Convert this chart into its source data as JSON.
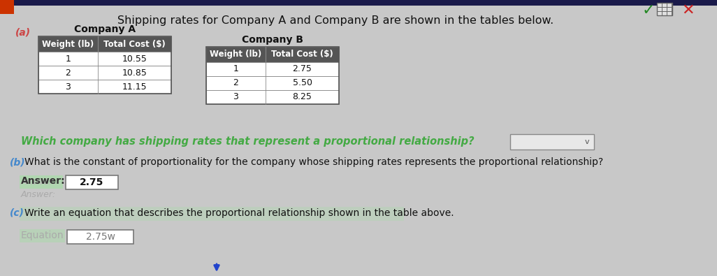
{
  "title": "Shipping rates for Company A and Company B are shown in the tables below.",
  "background_color": "#c8c8c8",
  "company_a_label": "Company A",
  "company_b_label": "Company B",
  "company_a_headers": [
    "Weight (lb)",
    "Total Cost ($)"
  ],
  "company_a_rows": [
    [
      "1",
      "10.55"
    ],
    [
      "2",
      "10.85"
    ],
    [
      "3",
      "11.15"
    ]
  ],
  "company_b_headers": [
    "Weight (lb)",
    "Total Cost ($)"
  ],
  "company_b_rows": [
    [
      "1",
      "2.75"
    ],
    [
      "2",
      "5.50"
    ],
    [
      "3",
      "8.25"
    ]
  ],
  "question_a": "Which company has shipping rates that represent a proportional relationship?",
  "question_b": "What is the constant of proportionality for the company whose shipping rates represents the proportional relationship?",
  "answer_label": "Answer:",
  "answer_value": "2.75",
  "question_c": "Write an equation that describes the proportional relationship shown in the table above.",
  "equation_label": "Equation",
  "equation_value": "2.75w",
  "part_a_label": "(a)",
  "part_b_label": "(b)",
  "part_c_label": "(c)",
  "top_bar_color": "#1a1a4a",
  "top_bar_height": 8,
  "table_header_bg": "#555555",
  "table_header_text": "#ffffff",
  "table_row_bg": "#ffffff",
  "table_border": "#888888",
  "answer_box_bg": "#ffffff",
  "dropdown_box_bg": "#e8e8e8",
  "answer_highlight": "#a0e0a0",
  "equation_highlight": "#a0e0a0",
  "part_a_color": "#cc4444",
  "part_b_color": "#4488cc",
  "part_c_color": "#4488cc",
  "question_a_color": "#44aa44",
  "answer_label_color": "#cc8800",
  "equation_label_color": "#aaaaaa"
}
